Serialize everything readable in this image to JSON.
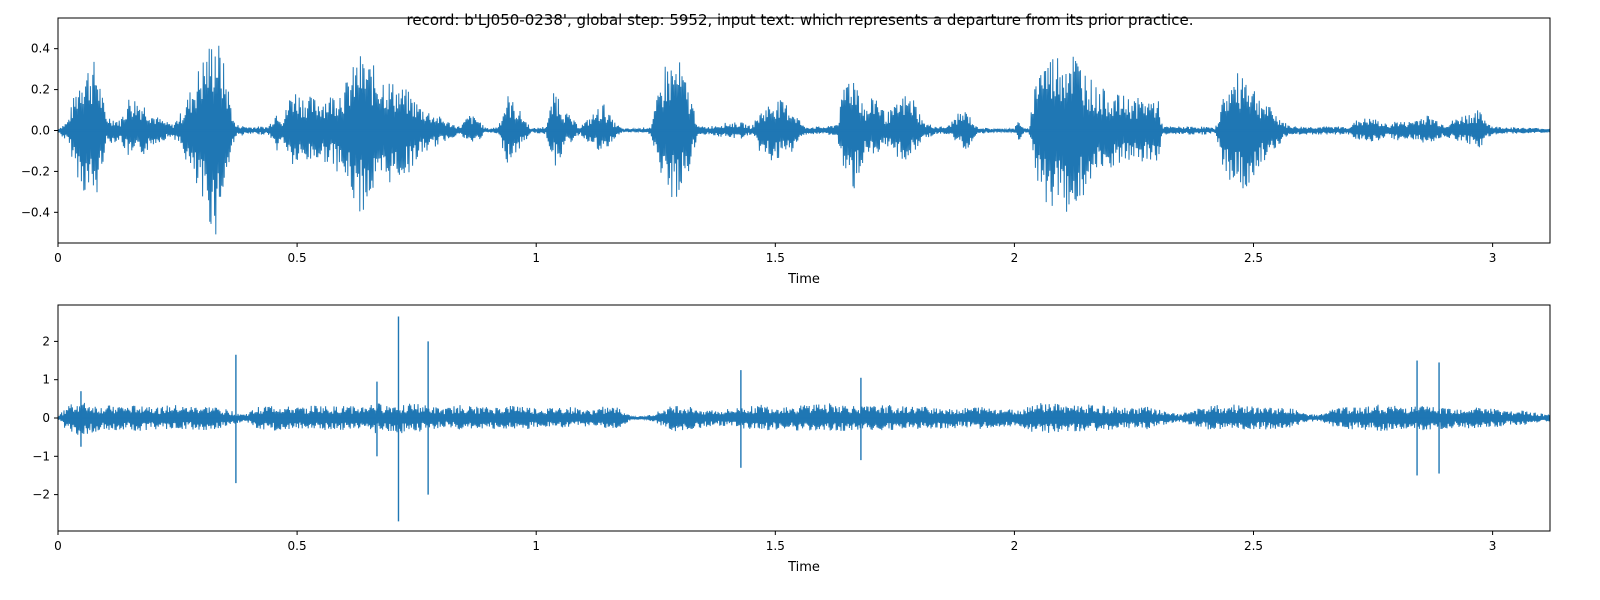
{
  "figure": {
    "title": "record: b'LJ050-0238', global step: 5952, input text: which represents a departure from its prior practice.",
    "line_color": "#1f77b4"
  },
  "chart_data": [
    {
      "type": "line",
      "xlabel": "Time",
      "ylabel": "",
      "xlim": [
        0,
        3.12
      ],
      "ylim": [
        -0.55,
        0.55
      ],
      "xticks": [
        0,
        0.5,
        1,
        1.5,
        2,
        2.5,
        3
      ],
      "xtick_labels": [
        "0",
        "0.5",
        "1",
        "1.5",
        "2",
        "2.5",
        "3"
      ],
      "yticks": [
        -0.4,
        -0.2,
        0.0,
        0.2,
        0.4
      ],
      "ytick_labels": [
        "−0.4",
        "−0.2",
        "0.0",
        "0.2",
        "0.4"
      ],
      "grid": false,
      "series": [
        {
          "envelope": {
            "t": [
              0.0,
              0.02,
              0.05,
              0.08,
              0.1,
              0.13,
              0.15,
              0.18,
              0.2,
              0.22,
              0.24,
              0.26,
              0.3,
              0.33,
              0.35,
              0.37,
              0.4,
              0.44,
              0.46,
              0.47,
              0.49,
              0.51,
              0.54,
              0.57,
              0.6,
              0.63,
              0.66,
              0.7,
              0.73,
              0.76,
              0.79,
              0.82,
              0.84,
              0.86,
              0.88,
              0.89,
              0.9,
              0.92,
              0.94,
              0.96,
              0.99,
              1.02,
              1.04,
              1.06,
              1.09,
              1.11,
              1.14,
              1.16,
              1.18,
              1.21,
              1.24,
              1.27,
              1.3,
              1.32,
              1.34,
              1.36,
              1.4,
              1.43,
              1.45,
              1.47,
              1.5,
              1.52,
              1.54,
              1.56,
              1.59,
              1.61,
              1.63,
              1.65,
              1.67,
              1.69,
              1.71,
              1.73,
              1.75,
              1.77,
              1.79,
              1.81,
              1.84,
              1.86,
              1.88,
              1.9,
              1.92,
              1.95,
              2.0,
              2.01,
              2.02,
              2.03,
              2.05,
              2.08,
              2.12,
              2.17,
              2.21,
              2.25,
              2.3,
              2.31,
              2.36,
              2.4,
              2.42,
              2.44,
              2.48,
              2.51,
              2.54,
              2.57,
              2.59,
              2.62,
              2.66,
              2.69,
              2.7,
              2.72,
              2.75,
              2.78,
              2.8,
              2.82,
              2.84,
              2.86,
              2.88,
              2.9,
              2.94,
              2.97,
              3.0,
              3.12
            ],
            "upper": [
              0.01,
              0.05,
              0.32,
              0.35,
              0.08,
              0.05,
              0.18,
              0.14,
              0.08,
              0.05,
              0.03,
              0.1,
              0.35,
              0.5,
              0.3,
              0.03,
              0.02,
              0.02,
              0.12,
              0.05,
              0.22,
              0.18,
              0.16,
              0.18,
              0.23,
              0.38,
              0.32,
              0.24,
              0.2,
              0.12,
              0.08,
              0.04,
              0.02,
              0.08,
              0.06,
              0.02,
              0.01,
              0.02,
              0.18,
              0.12,
              0.01,
              0.02,
              0.22,
              0.1,
              0.02,
              0.06,
              0.14,
              0.05,
              0.01,
              0.01,
              0.02,
              0.34,
              0.34,
              0.2,
              0.02,
              0.02,
              0.04,
              0.04,
              0.02,
              0.1,
              0.16,
              0.14,
              0.1,
              0.02,
              0.02,
              0.02,
              0.04,
              0.3,
              0.28,
              0.1,
              0.2,
              0.08,
              0.12,
              0.18,
              0.16,
              0.04,
              0.02,
              0.02,
              0.08,
              0.1,
              0.02,
              0.01,
              0.01,
              0.06,
              0.01,
              0.01,
              0.36,
              0.38,
              0.42,
              0.22,
              0.18,
              0.16,
              0.16,
              0.02,
              0.02,
              0.02,
              0.01,
              0.2,
              0.32,
              0.18,
              0.1,
              0.03,
              0.02,
              0.02,
              0.02,
              0.02,
              0.02,
              0.06,
              0.06,
              0.03,
              0.05,
              0.04,
              0.06,
              0.08,
              0.06,
              0.03,
              0.08,
              0.1,
              0.02,
              0.01
            ],
            "lower": [
              -0.01,
              -0.06,
              -0.3,
              -0.36,
              -0.07,
              -0.05,
              -0.15,
              -0.12,
              -0.07,
              -0.05,
              -0.03,
              -0.1,
              -0.38,
              -0.52,
              -0.28,
              -0.03,
              -0.02,
              -0.02,
              -0.11,
              -0.05,
              -0.18,
              -0.17,
              -0.15,
              -0.16,
              -0.25,
              -0.42,
              -0.32,
              -0.25,
              -0.22,
              -0.12,
              -0.08,
              -0.04,
              -0.02,
              -0.07,
              -0.05,
              -0.02,
              -0.01,
              -0.02,
              -0.16,
              -0.11,
              -0.01,
              -0.02,
              -0.18,
              -0.09,
              -0.02,
              -0.06,
              -0.13,
              -0.05,
              -0.01,
              -0.01,
              -0.02,
              -0.34,
              -0.34,
              -0.2,
              -0.02,
              -0.02,
              -0.04,
              -0.04,
              -0.02,
              -0.12,
              -0.16,
              -0.14,
              -0.1,
              -0.02,
              -0.02,
              -0.02,
              -0.04,
              -0.3,
              -0.28,
              -0.1,
              -0.18,
              -0.08,
              -0.12,
              -0.16,
              -0.12,
              -0.04,
              -0.02,
              -0.02,
              -0.06,
              -0.1,
              -0.02,
              -0.01,
              -0.01,
              -0.06,
              -0.01,
              -0.01,
              -0.32,
              -0.38,
              -0.42,
              -0.24,
              -0.18,
              -0.16,
              -0.16,
              -0.02,
              -0.02,
              -0.02,
              -0.01,
              -0.22,
              -0.32,
              -0.18,
              -0.1,
              -0.03,
              -0.02,
              -0.02,
              -0.02,
              -0.02,
              -0.02,
              -0.05,
              -0.06,
              -0.03,
              -0.05,
              -0.04,
              -0.05,
              -0.07,
              -0.05,
              -0.03,
              -0.06,
              -0.09,
              -0.02,
              -0.01
            ]
          },
          "spikes": []
        }
      ]
    },
    {
      "type": "line",
      "xlabel": "Time",
      "ylabel": "",
      "xlim": [
        0,
        3.12
      ],
      "ylim": [
        -2.95,
        2.95
      ],
      "xticks": [
        0,
        0.5,
        1,
        1.5,
        2,
        2.5,
        3
      ],
      "xtick_labels": [
        "0",
        "0.5",
        "1",
        "1.5",
        "2",
        "2.5",
        "3"
      ],
      "yticks": [
        -2,
        -1,
        0,
        1,
        2
      ],
      "ytick_labels": [
        "−2",
        "−1",
        "0",
        "1",
        "2"
      ],
      "grid": false,
      "series": [
        {
          "envelope": {
            "t": [
              0.0,
              0.03,
              0.06,
              0.09,
              0.12,
              0.15,
              0.18,
              0.21,
              0.24,
              0.27,
              0.3,
              0.33,
              0.36,
              0.39,
              0.42,
              0.45,
              0.48,
              0.51,
              0.54,
              0.57,
              0.6,
              0.63,
              0.66,
              0.69,
              0.72,
              0.75,
              0.78,
              0.81,
              0.84,
              0.87,
              0.9,
              0.93,
              0.96,
              0.99,
              1.02,
              1.05,
              1.08,
              1.11,
              1.14,
              1.17,
              1.2,
              1.23,
              1.26,
              1.29,
              1.32,
              1.35,
              1.38,
              1.41,
              1.44,
              1.47,
              1.5,
              1.53,
              1.56,
              1.59,
              1.62,
              1.65,
              1.68,
              1.71,
              1.74,
              1.77,
              1.8,
              1.83,
              1.86,
              1.89,
              1.92,
              1.95,
              1.98,
              2.01,
              2.04,
              2.07,
              2.1,
              2.13,
              2.16,
              2.19,
              2.22,
              2.25,
              2.28,
              2.31,
              2.34,
              2.37,
              2.4,
              2.43,
              2.46,
              2.49,
              2.52,
              2.55,
              2.58,
              2.61,
              2.64,
              2.67,
              2.7,
              2.73,
              2.76,
              2.79,
              2.82,
              2.85,
              2.88,
              2.91,
              2.94,
              2.97,
              3.0,
              3.03,
              3.06,
              3.09,
              3.12
            ],
            "upper": [
              0.05,
              0.45,
              0.4,
              0.3,
              0.35,
              0.3,
              0.4,
              0.28,
              0.35,
              0.3,
              0.32,
              0.3,
              0.2,
              0.1,
              0.3,
              0.35,
              0.3,
              0.28,
              0.35,
              0.3,
              0.32,
              0.3,
              0.4,
              0.35,
              0.4,
              0.38,
              0.3,
              0.25,
              0.35,
              0.3,
              0.28,
              0.3,
              0.35,
              0.28,
              0.25,
              0.3,
              0.28,
              0.2,
              0.3,
              0.28,
              0.05,
              0.05,
              0.2,
              0.35,
              0.3,
              0.25,
              0.2,
              0.25,
              0.3,
              0.35,
              0.3,
              0.32,
              0.35,
              0.4,
              0.38,
              0.35,
              0.3,
              0.32,
              0.35,
              0.3,
              0.3,
              0.3,
              0.28,
              0.25,
              0.3,
              0.28,
              0.25,
              0.2,
              0.4,
              0.4,
              0.38,
              0.35,
              0.35,
              0.32,
              0.3,
              0.28,
              0.3,
              0.2,
              0.1,
              0.2,
              0.3,
              0.35,
              0.35,
              0.3,
              0.3,
              0.28,
              0.25,
              0.1,
              0.1,
              0.25,
              0.3,
              0.3,
              0.35,
              0.32,
              0.3,
              0.32,
              0.3,
              0.28,
              0.25,
              0.3,
              0.25,
              0.2,
              0.2,
              0.15,
              0.1
            ],
            "lower": [
              -0.05,
              -0.5,
              -0.45,
              -0.3,
              -0.35,
              -0.3,
              -0.38,
              -0.28,
              -0.35,
              -0.3,
              -0.32,
              -0.3,
              -0.2,
              -0.1,
              -0.3,
              -0.35,
              -0.3,
              -0.28,
              -0.35,
              -0.3,
              -0.32,
              -0.3,
              -0.4,
              -0.38,
              -0.4,
              -0.38,
              -0.3,
              -0.25,
              -0.35,
              -0.3,
              -0.28,
              -0.3,
              -0.35,
              -0.28,
              -0.25,
              -0.3,
              -0.28,
              -0.2,
              -0.3,
              -0.28,
              -0.05,
              -0.05,
              -0.2,
              -0.35,
              -0.3,
              -0.25,
              -0.2,
              -0.25,
              -0.3,
              -0.35,
              -0.3,
              -0.32,
              -0.35,
              -0.4,
              -0.38,
              -0.35,
              -0.3,
              -0.32,
              -0.35,
              -0.3,
              -0.3,
              -0.3,
              -0.28,
              -0.25,
              -0.3,
              -0.28,
              -0.25,
              -0.2,
              -0.4,
              -0.4,
              -0.38,
              -0.35,
              -0.35,
              -0.32,
              -0.3,
              -0.28,
              -0.3,
              -0.2,
              -0.1,
              -0.2,
              -0.3,
              -0.35,
              -0.35,
              -0.3,
              -0.3,
              -0.28,
              -0.25,
              -0.1,
              -0.1,
              -0.25,
              -0.3,
              -0.3,
              -0.35,
              -0.32,
              -0.3,
              -0.32,
              -0.3,
              -0.28,
              -0.25,
              -0.3,
              -0.25,
              -0.2,
              -0.2,
              -0.15,
              -0.1
            ]
          },
          "spikes": [
            {
              "t": 0.372,
              "lo": -1.7,
              "hi": 1.65
            },
            {
              "t": 0.667,
              "lo": -1.0,
              "hi": 0.95
            },
            {
              "t": 0.712,
              "lo": -2.7,
              "hi": 2.65
            },
            {
              "t": 0.774,
              "lo": -2.0,
              "hi": 2.0
            },
            {
              "t": 0.048,
              "lo": -0.75,
              "hi": 0.7
            },
            {
              "t": 1.428,
              "lo": -1.3,
              "hi": 1.25
            },
            {
              "t": 1.679,
              "lo": -1.1,
              "hi": 1.05
            },
            {
              "t": 2.842,
              "lo": -1.5,
              "hi": 1.5
            },
            {
              "t": 2.888,
              "lo": -1.45,
              "hi": 1.45
            }
          ]
        }
      ]
    }
  ]
}
